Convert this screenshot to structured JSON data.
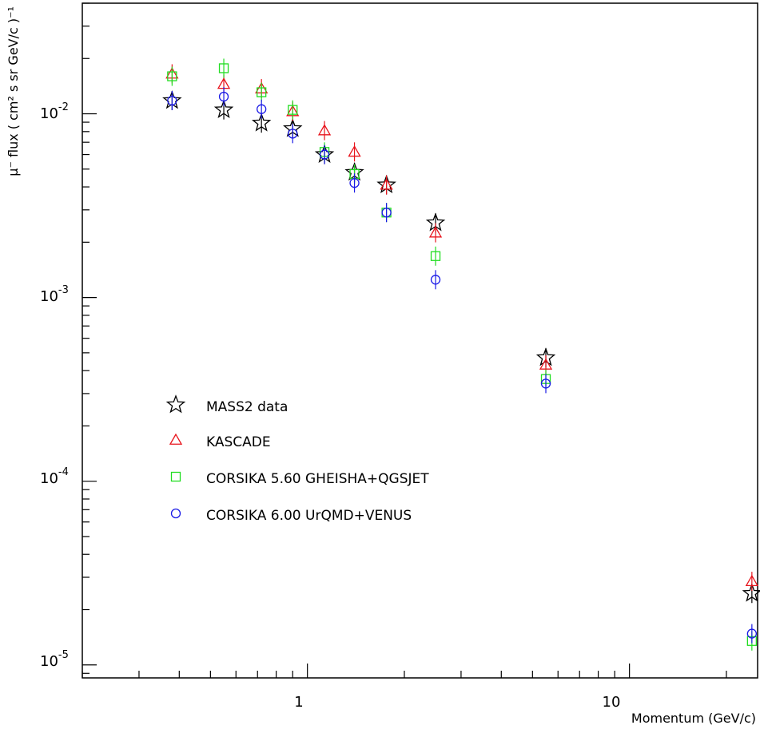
{
  "chart_data": {
    "type": "scatter",
    "title": "",
    "xlabel": "Momentum (GeV/c)",
    "ylabel": "μ⁻ flux ( cm² s sr GeV/c )⁻¹",
    "xscale": "log",
    "yscale": "log",
    "xlim": [
      0.2,
      25
    ],
    "ylim": [
      8.5e-06,
      0.04
    ],
    "grid": false,
    "legend_position": "middle-left",
    "x_tick_labels": [
      "1",
      "10"
    ],
    "y_tick_labels": [
      {
        "base": "10",
        "exp": "-2"
      },
      {
        "base": "10",
        "exp": "-3"
      },
      {
        "base": "10",
        "exp": "-4"
      },
      {
        "base": "10",
        "exp": "-5"
      }
    ],
    "series": [
      {
        "name": "MASS2 data",
        "marker": "star",
        "color": "#000000",
        "points": [
          {
            "x": 0.38,
            "y": 0.0118
          },
          {
            "x": 0.55,
            "y": 0.0105
          },
          {
            "x": 0.72,
            "y": 0.0089
          },
          {
            "x": 0.9,
            "y": 0.0083
          },
          {
            "x": 1.13,
            "y": 0.006
          },
          {
            "x": 1.4,
            "y": 0.0048
          },
          {
            "x": 1.76,
            "y": 0.0041
          },
          {
            "x": 2.5,
            "y": 0.00255
          },
          {
            "x": 5.5,
            "y": 0.00047
          },
          {
            "x": 24,
            "y": 2.45e-05
          }
        ]
      },
      {
        "name": "KASCADE",
        "marker": "triangle",
        "color": "#e8141c",
        "points": [
          {
            "x": 0.38,
            "y": 0.0165
          },
          {
            "x": 0.55,
            "y": 0.0145
          },
          {
            "x": 0.72,
            "y": 0.0137
          },
          {
            "x": 0.9,
            "y": 0.0103
          },
          {
            "x": 1.13,
            "y": 0.0081
          },
          {
            "x": 1.4,
            "y": 0.0062
          },
          {
            "x": 1.76,
            "y": 0.0041
          },
          {
            "x": 2.5,
            "y": 0.00225
          },
          {
            "x": 5.5,
            "y": 0.00043
          },
          {
            "x": 24,
            "y": 2.85e-05
          }
        ]
      },
      {
        "name": "CORSIKA 5.60 GHEISHA+QGSJET",
        "marker": "square",
        "color": "#22dd22",
        "points": [
          {
            "x": 0.38,
            "y": 0.016
          },
          {
            "x": 0.55,
            "y": 0.0177
          },
          {
            "x": 0.72,
            "y": 0.0131
          },
          {
            "x": 0.9,
            "y": 0.0105
          },
          {
            "x": 1.13,
            "y": 0.0062
          },
          {
            "x": 1.4,
            "y": 0.0047
          },
          {
            "x": 1.76,
            "y": 0.0029
          },
          {
            "x": 2.5,
            "y": 0.00168
          },
          {
            "x": 5.5,
            "y": 0.00036
          },
          {
            "x": 24,
            "y": 1.35e-05
          }
        ]
      },
      {
        "name": "CORSIKA 6.00 UrQMD+VENUS",
        "marker": "circle",
        "color": "#1a1ae6",
        "points": [
          {
            "x": 0.38,
            "y": 0.0118
          },
          {
            "x": 0.55,
            "y": 0.0124
          },
          {
            "x": 0.72,
            "y": 0.0106
          },
          {
            "x": 0.9,
            "y": 0.0078
          },
          {
            "x": 1.13,
            "y": 0.006
          },
          {
            "x": 1.4,
            "y": 0.0042
          },
          {
            "x": 1.76,
            "y": 0.0029
          },
          {
            "x": 2.5,
            "y": 0.00125
          },
          {
            "x": 5.5,
            "y": 0.00034
          },
          {
            "x": 24,
            "y": 1.48e-05
          }
        ]
      }
    ]
  }
}
